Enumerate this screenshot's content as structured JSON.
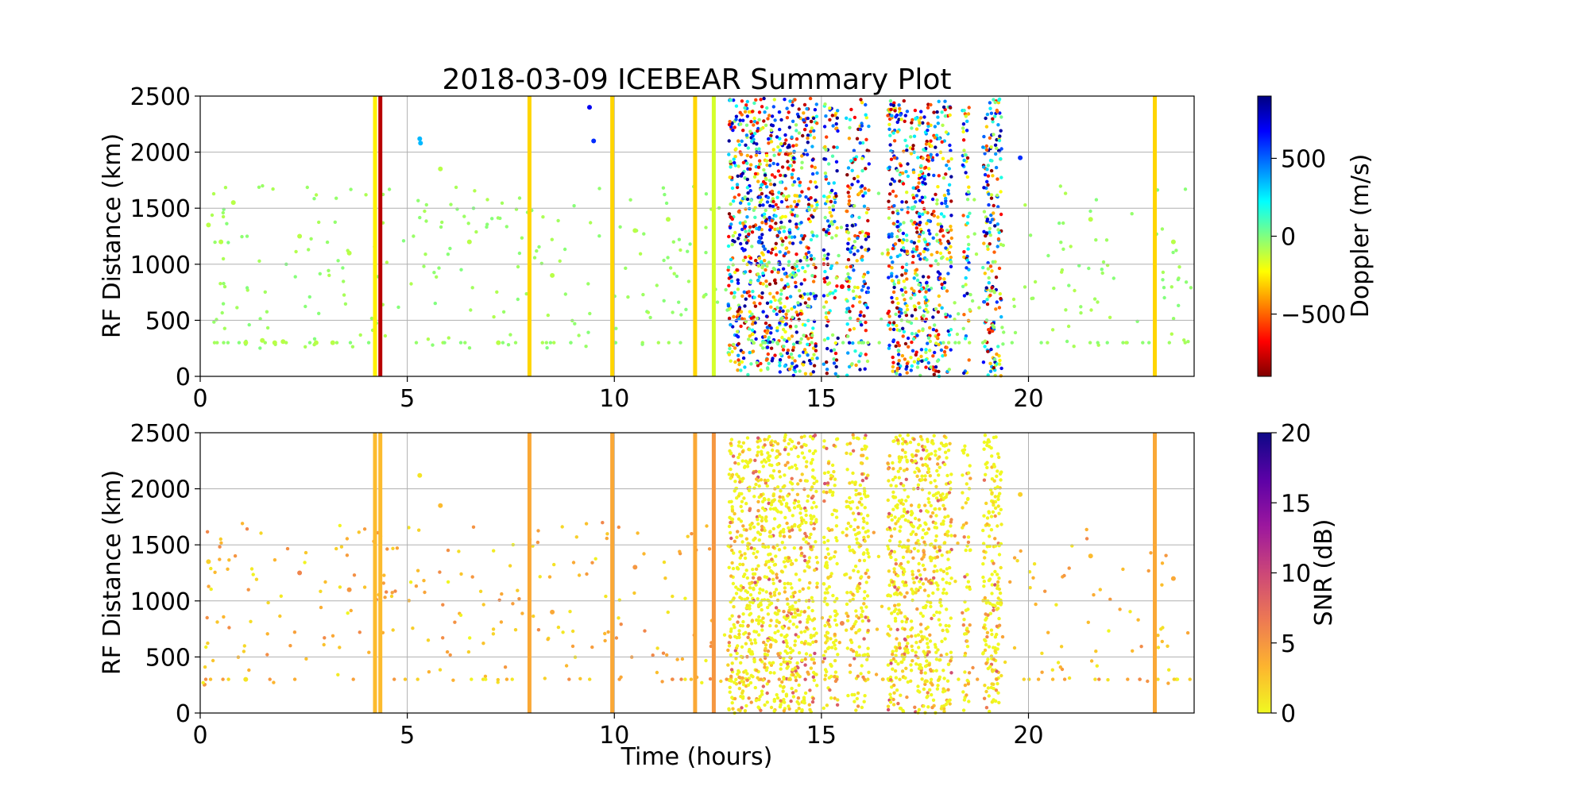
{
  "title": "2018-03-09 ICEBEAR Summary Plot",
  "colors": {
    "jet": [
      "#800000",
      "#ff0000",
      "#ff8000",
      "#ffff00",
      "#80ff80",
      "#00ffff",
      "#0080ff",
      "#0000ff",
      "#000080"
    ],
    "plasma_r": [
      "#f0f921",
      "#fdb42f",
      "#ed7953",
      "#cc4778",
      "#9c179e",
      "#5c01a6",
      "#0d0887"
    ],
    "grid": "#b0b0b0"
  },
  "chart_data": [
    {
      "type": "scatter",
      "xlabel": "Time (hours)",
      "ylabel": "RF Distance (km)",
      "xlim": [
        0,
        24
      ],
      "ylim": [
        0,
        2500
      ],
      "xticks": [
        0,
        5,
        10,
        15,
        20
      ],
      "yticks": [
        0,
        500,
        1000,
        1500,
        2000,
        2500
      ],
      "grid": true,
      "colorbar": {
        "label": "Doppler (m/s)",
        "range": [
          -900,
          900
        ],
        "ticks": [
          500,
          0,
          -500
        ],
        "tick_labels": [
          "500",
          "0",
          "−500"
        ],
        "colormap": "jet"
      },
      "bands": [
        {
          "x": 4.22,
          "doppler": -250
        },
        {
          "x": 4.35,
          "doppler": -800
        },
        {
          "x": 7.95,
          "doppler": -300
        },
        {
          "x": 9.95,
          "doppler": -300
        },
        {
          "x": 11.95,
          "doppler": -300
        },
        {
          "x": 12.4,
          "doppler": -150
        },
        {
          "x": 23.05,
          "doppler": -300
        }
      ],
      "points": [
        {
          "x": 0.2,
          "y": 1350,
          "doppler": -100
        },
        {
          "x": 0.5,
          "y": 1200,
          "doppler": -100
        },
        {
          "x": 0.8,
          "y": 1550,
          "doppler": -100
        },
        {
          "x": 1.1,
          "y": 300,
          "doppler": -100
        },
        {
          "x": 1.5,
          "y": 320,
          "doppler": -100
        },
        {
          "x": 1.8,
          "y": 300,
          "doppler": -100
        },
        {
          "x": 2.0,
          "y": 310,
          "doppler": -100
        },
        {
          "x": 2.4,
          "y": 1250,
          "doppler": -100
        },
        {
          "x": 2.8,
          "y": 300,
          "doppler": -100
        },
        {
          "x": 3.2,
          "y": 300,
          "doppler": -100
        },
        {
          "x": 3.6,
          "y": 1100,
          "doppler": -100
        },
        {
          "x": 5.3,
          "y": 2120,
          "doppler": 350
        },
        {
          "x": 5.32,
          "y": 2080,
          "doppler": 350
        },
        {
          "x": 5.8,
          "y": 1850,
          "doppler": -100
        },
        {
          "x": 6.5,
          "y": 1200,
          "doppler": -100
        },
        {
          "x": 7.2,
          "y": 300,
          "doppler": -100
        },
        {
          "x": 8.5,
          "y": 900,
          "doppler": -100
        },
        {
          "x": 9.4,
          "y": 2400,
          "doppler": 700
        },
        {
          "x": 9.5,
          "y": 2100,
          "doppler": 600
        },
        {
          "x": 10.5,
          "y": 1300,
          "doppler": -100
        },
        {
          "x": 11.3,
          "y": 1400,
          "doppler": -100
        },
        {
          "x": 13.5,
          "y": 1200,
          "doppler": 500
        },
        {
          "x": 15.5,
          "y": 800,
          "doppler": -700
        },
        {
          "x": 17.2,
          "y": 1500,
          "doppler": 100
        },
        {
          "x": 19.8,
          "y": 1950,
          "doppler": 600
        },
        {
          "x": 21.5,
          "y": 1400,
          "doppler": -100
        },
        {
          "x": 23.5,
          "y": 1200,
          "doppler": -100
        }
      ]
    },
    {
      "type": "scatter",
      "xlabel": "Time (hours)",
      "ylabel": "RF Distance (km)",
      "xlim": [
        0,
        24
      ],
      "ylim": [
        0,
        2500
      ],
      "xticks": [
        0,
        5,
        10,
        15,
        20
      ],
      "yticks": [
        0,
        500,
        1000,
        1500,
        2000,
        2500
      ],
      "grid": true,
      "colorbar": {
        "label": "SNR (dB)",
        "range": [
          0,
          20
        ],
        "ticks": [
          20,
          15,
          10,
          5,
          0
        ],
        "tick_labels": [
          "20",
          "15",
          "10",
          "5",
          "0"
        ],
        "colormap": "plasma_r"
      },
      "bands": [
        {
          "x": 4.22,
          "snr": 3
        },
        {
          "x": 4.35,
          "snr": 3
        },
        {
          "x": 7.95,
          "snr": 4
        },
        {
          "x": 9.95,
          "snr": 4
        },
        {
          "x": 11.95,
          "snr": 4
        },
        {
          "x": 12.4,
          "snr": 5
        },
        {
          "x": 23.05,
          "snr": 4
        }
      ],
      "points": [
        {
          "x": 0.2,
          "y": 1350,
          "snr": 2
        },
        {
          "x": 1.1,
          "y": 300,
          "snr": 1
        },
        {
          "x": 2.4,
          "y": 1250,
          "snr": 6
        },
        {
          "x": 3.6,
          "y": 1100,
          "snr": 5
        },
        {
          "x": 5.3,
          "y": 2120,
          "snr": 1
        },
        {
          "x": 5.8,
          "y": 1850,
          "snr": 3
        },
        {
          "x": 8.5,
          "y": 900,
          "snr": 4
        },
        {
          "x": 10.5,
          "y": 1300,
          "snr": 5
        },
        {
          "x": 13.5,
          "y": 1200,
          "snr": 7
        },
        {
          "x": 15.5,
          "y": 800,
          "snr": 6
        },
        {
          "x": 19.8,
          "y": 1950,
          "snr": 2
        },
        {
          "x": 21.5,
          "y": 1400,
          "snr": 3
        },
        {
          "x": 23.5,
          "y": 1200,
          "snr": 4
        }
      ]
    }
  ]
}
